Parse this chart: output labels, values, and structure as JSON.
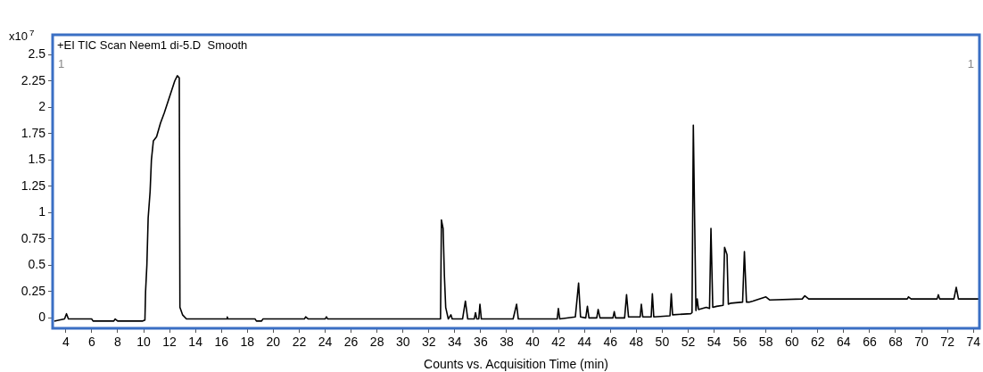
{
  "chart_data": {
    "type": "line",
    "title": "+EI TIC Scan Neem1 di-5.D  Smooth",
    "xlabel": "Counts vs. Acquisition Time (min)",
    "ylabel": "x10$^{7}$",
    "annotations": [
      "1",
      "1"
    ],
    "xlim": [
      3.05,
      74.4
    ],
    "ylim": [
      -0.09,
      2.68
    ],
    "xticks": [
      4,
      6,
      8,
      10,
      12,
      14,
      16,
      18,
      20,
      22,
      24,
      26,
      28,
      30,
      32,
      34,
      36,
      38,
      40,
      42,
      44,
      46,
      48,
      50,
      52,
      54,
      56,
      58,
      60,
      62,
      64,
      66,
      68,
      70,
      72,
      74
    ],
    "yticks": [
      0,
      0.25,
      0.5,
      0.75,
      1,
      1.25,
      1.5,
      1.75,
      2,
      2.25,
      2.5
    ],
    "series": [
      {
        "color": "#000000",
        "x": [
          3.1,
          3.9,
          4.05,
          4.2,
          6,
          6.1,
          7.7,
          7.8,
          8,
          9.9,
          10.1,
          10.15,
          10.25,
          10.35,
          10.5,
          10.6,
          10.75,
          11.0,
          11.3,
          11.6,
          12.0,
          12.4,
          12.6,
          12.75,
          12.8,
          13.0,
          13.3,
          16.4,
          16.45,
          16.5,
          18.6,
          18.7,
          19.1,
          19.2,
          22.4,
          22.5,
          22.7,
          24.0,
          24.1,
          24.2,
          32.9,
          32.97,
          33.1,
          33.2,
          33.3,
          33.5,
          33.7,
          33.8,
          34.6,
          34.82,
          35.0,
          35.5,
          35.6,
          35.7,
          35.85,
          35.94,
          36.05,
          38.5,
          38.77,
          38.9,
          41.9,
          41.99,
          42.1,
          43.3,
          43.55,
          43.7,
          44.1,
          44.23,
          44.35,
          44.95,
          45.06,
          45.2,
          46.2,
          46.3,
          46.4,
          47.1,
          47.25,
          47.4,
          48.3,
          48.39,
          48.5,
          49.15,
          49.24,
          49.35,
          50.6,
          50.7,
          50.8,
          52.2,
          52.3,
          52.4,
          52.6,
          52.7,
          52.8,
          53.4,
          53.65,
          53.76,
          53.9,
          54.2,
          54.7,
          54.81,
          55.0,
          55.1,
          55.3,
          56.2,
          56.34,
          56.5,
          56.7,
          57.0,
          58.0,
          58.3,
          60.8,
          61.0,
          61.3,
          68.9,
          69.0,
          69.2,
          71.2,
          71.3,
          71.4,
          72.5,
          72.68,
          72.85,
          74.4
        ],
        "values": [
          -0.03,
          -0.01,
          0.04,
          -0.01,
          -0.01,
          -0.03,
          -0.03,
          -0.01,
          -0.03,
          -0.03,
          -0.02,
          0.25,
          0.5,
          0.95,
          1.2,
          1.5,
          1.68,
          1.72,
          1.85,
          1.95,
          2.1,
          2.25,
          2.3,
          2.28,
          0.1,
          0.03,
          -0.01,
          -0.01,
          0.01,
          -0.01,
          -0.01,
          -0.03,
          -0.03,
          -0.01,
          -0.01,
          0.01,
          -0.01,
          -0.01,
          0.01,
          -0.01,
          -0.01,
          0.93,
          0.85,
          0.4,
          0.1,
          -0.01,
          0.03,
          -0.01,
          -0.01,
          0.16,
          -0.01,
          -0.01,
          0.05,
          -0.01,
          -0.01,
          0.13,
          -0.01,
          -0.01,
          0.13,
          -0.01,
          -0.01,
          0.09,
          -0.01,
          0.01,
          0.33,
          0.01,
          0.0,
          0.11,
          0.0,
          0.0,
          0.08,
          0.0,
          0.0,
          0.06,
          0.0,
          0.0,
          0.22,
          0.01,
          0.01,
          0.13,
          0.01,
          0.01,
          0.23,
          0.01,
          0.02,
          0.23,
          0.03,
          0.04,
          0.05,
          1.83,
          0.07,
          0.18,
          0.08,
          0.1,
          0.09,
          0.85,
          0.1,
          0.11,
          0.12,
          0.67,
          0.6,
          0.13,
          0.14,
          0.15,
          0.63,
          0.15,
          0.15,
          0.16,
          0.2,
          0.17,
          0.18,
          0.21,
          0.18,
          0.18,
          0.2,
          0.18,
          0.18,
          0.22,
          0.18,
          0.18,
          0.29,
          0.18,
          0.18
        ]
      }
    ]
  }
}
